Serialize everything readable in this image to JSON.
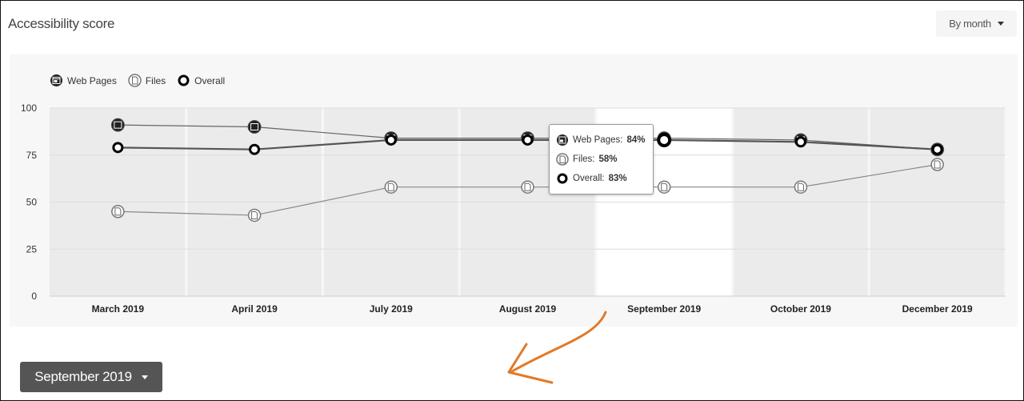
{
  "header": {
    "title": "Accessibility score",
    "granularity": "By month"
  },
  "legend": [
    {
      "label": "Web Pages",
      "icon": "web-page-icon"
    },
    {
      "label": "Files",
      "icon": "file-icon"
    },
    {
      "label": "Overall",
      "icon": "ring-icon"
    }
  ],
  "tooltip": {
    "month": "September 2019",
    "rows": [
      {
        "label": "Web Pages:",
        "value": "84%"
      },
      {
        "label": "Files:",
        "value": "58%"
      },
      {
        "label": "Overall:",
        "value": "83%"
      }
    ]
  },
  "period_select": {
    "value": "September 2019"
  },
  "colors": {
    "annotation_arrow": "#e07a2a",
    "selected_band": "#ffffff",
    "band": "#ebebeb",
    "button_dark": "#555555"
  },
  "chart_data": {
    "type": "line",
    "categories": [
      "March 2019",
      "April 2019",
      "July 2019",
      "August 2019",
      "September 2019",
      "October 2019",
      "December 2019"
    ],
    "selected_category": "September 2019",
    "ylim": [
      0,
      100
    ],
    "yticks": [
      0,
      25,
      50,
      75,
      100
    ],
    "grid": true,
    "legend_placement": "top-left",
    "series": [
      {
        "name": "Web Pages",
        "values": [
          91,
          90,
          84,
          84,
          84,
          83,
          78
        ]
      },
      {
        "name": "Files",
        "values": [
          45,
          43,
          58,
          58,
          58,
          58,
          70
        ]
      },
      {
        "name": "Overall",
        "values": [
          79,
          78,
          83,
          83,
          83,
          82,
          78
        ]
      }
    ]
  }
}
